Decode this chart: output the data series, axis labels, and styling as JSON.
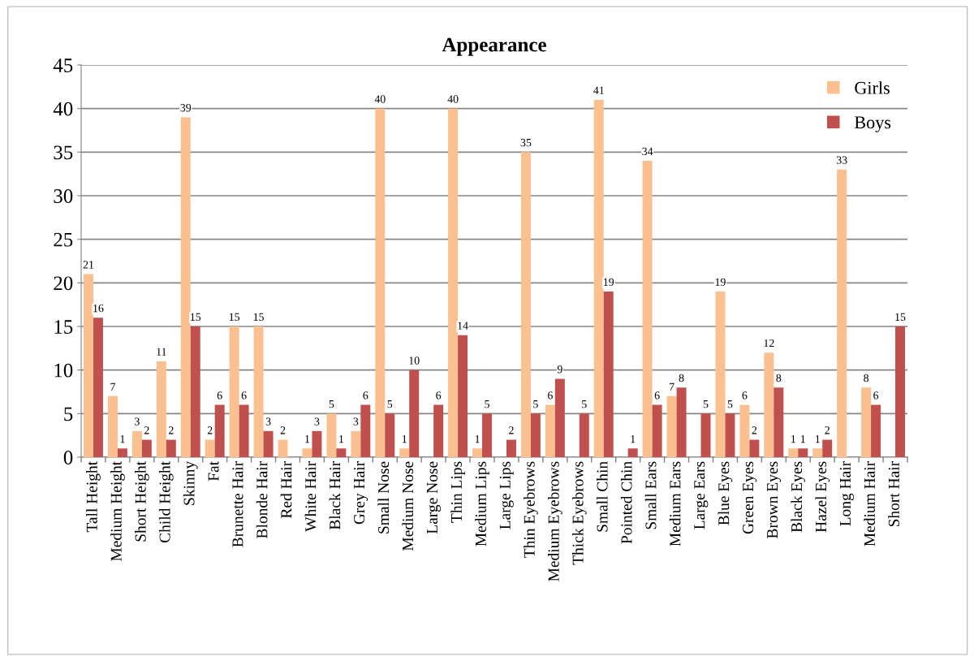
{
  "chart_data": {
    "type": "bar",
    "title": "Appearance",
    "categories": [
      "Tall Height",
      "Medium Height",
      "Short Height",
      "Child Height",
      "Skinny",
      "Fat",
      "Brunette Hair",
      "Blonde Hair",
      "Red Hair",
      "White Hair",
      "Black Hair",
      "Grey Hair",
      "Small Nose",
      "Medium Nose",
      "Large Nose",
      "Thin Lips",
      "Medium Lips",
      "Large Lips",
      "Thin Eyebrows",
      "Medium Eyebrows",
      "Thick Eyebrows",
      "Small Chin",
      "Pointed Chin",
      "Small Ears",
      "Medium Ears",
      "Large Ears",
      "Blue Eyes",
      "Green Eyes",
      "Brown Eyes",
      "Black Eyes",
      "Hazel Eyes",
      "Long Hair",
      "Medium Hair",
      "Short Hair"
    ],
    "series": [
      {
        "name": "Girls",
        "color": "#fac08f",
        "values": [
          21,
          7,
          3,
          11,
          39,
          2,
          15,
          15,
          2,
          1,
          5,
          3,
          40,
          1,
          null,
          40,
          1,
          null,
          35,
          6,
          null,
          41,
          null,
          34,
          7,
          null,
          19,
          6,
          12,
          1,
          1,
          33,
          8,
          null
        ]
      },
      {
        "name": "Boys",
        "color": "#c0504d",
        "values": [
          16,
          1,
          2,
          2,
          15,
          6,
          6,
          3,
          null,
          3,
          1,
          6,
          5,
          10,
          6,
          14,
          5,
          2,
          5,
          9,
          5,
          19,
          1,
          6,
          8,
          5,
          5,
          2,
          8,
          1,
          2,
          null,
          6,
          15
        ]
      }
    ],
    "ylim": [
      0,
      45
    ],
    "yticks": [
      0,
      5,
      10,
      15,
      20,
      25,
      30,
      35,
      40,
      45
    ],
    "grid": "y",
    "legend": "top right",
    "data_labels": true
  }
}
